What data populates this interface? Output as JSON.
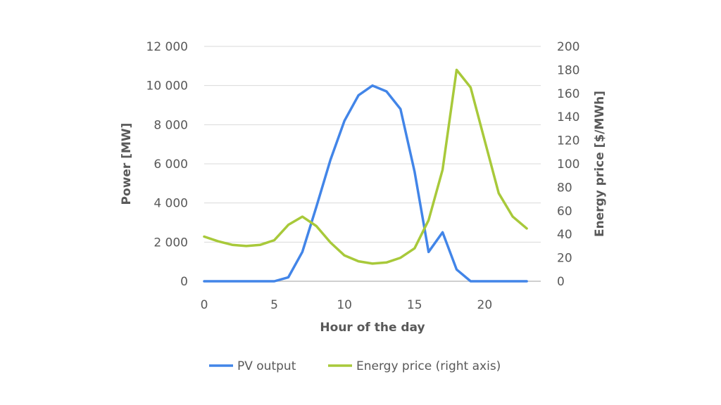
{
  "chart_data": {
    "type": "line",
    "title": "",
    "xlabel": "Hour of the day",
    "ylabel": "Power [MW]",
    "y2label": "Energy price [$/MWh]",
    "xlim": [
      0,
      24
    ],
    "xticks": [
      0,
      5,
      10,
      15,
      20
    ],
    "ylim": [
      0,
      12000
    ],
    "yticks": [
      0,
      2000,
      4000,
      6000,
      8000,
      10000,
      12000
    ],
    "ytick_labels": [
      "0",
      "2 000",
      "4 000",
      "6 000",
      "8 000",
      "10 000",
      "12 000"
    ],
    "y2lim": [
      0,
      200
    ],
    "y2ticks": [
      0,
      20,
      40,
      60,
      80,
      100,
      120,
      140,
      160,
      180,
      200
    ],
    "grid": true,
    "legend_position": "bottom",
    "x": [
      0,
      1,
      2,
      3,
      4,
      5,
      6,
      7,
      8,
      9,
      10,
      11,
      12,
      13,
      14,
      15,
      16,
      17,
      18,
      19,
      20,
      21,
      22,
      23
    ],
    "series": [
      {
        "name": "PV output",
        "axis": "left",
        "color": "#4285E8",
        "values": [
          0,
          0,
          0,
          0,
          0,
          0,
          200,
          1500,
          3800,
          6200,
          8200,
          9500,
          10000,
          9700,
          8800,
          5600,
          1500,
          2500,
          600,
          0,
          0,
          0,
          0,
          0
        ]
      },
      {
        "name": "Energy price (right axis)",
        "axis": "right",
        "color": "#A8C93A",
        "values": [
          38,
          34,
          31,
          30,
          31,
          35,
          48,
          55,
          47,
          33,
          22,
          17,
          15,
          16,
          20,
          28,
          52,
          95,
          180,
          165,
          120,
          75,
          55,
          45
        ]
      }
    ]
  }
}
